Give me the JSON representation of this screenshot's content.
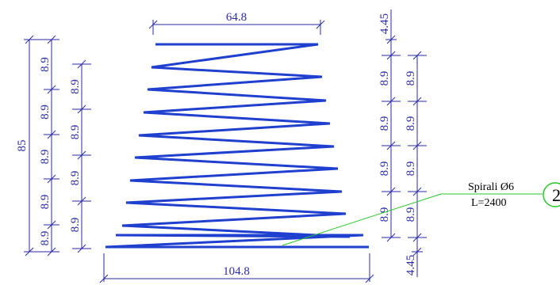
{
  "colors": {
    "dimension": "#2a2aa8",
    "spiral": "#1f3fcf",
    "leader": "#28c828",
    "mark_circle": "#28c828",
    "text": "#000000"
  },
  "dimensions": {
    "top_width": "64.8",
    "bottom_width": "104.8",
    "total_height": "85",
    "end_offset_top": "4.45",
    "end_offset_bottom": "4.45",
    "pitch": "8.9"
  },
  "annotation": {
    "label": "Spirali Ø6",
    "length": "L=2400",
    "mark_number": "2"
  }
}
